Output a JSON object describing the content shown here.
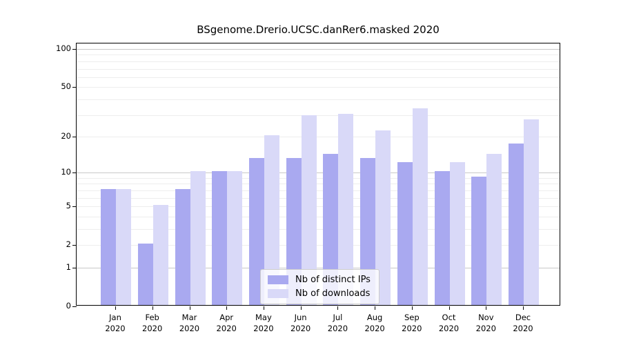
{
  "title": "BSgenome.Drerio.UCSC.danRer6.masked 2020",
  "chart_data": {
    "type": "bar",
    "title": "BSgenome.Drerio.UCSC.danRer6.masked 2020",
    "categories": [
      "Jan 2020",
      "Feb 2020",
      "Mar 2020",
      "Apr 2020",
      "May 2020",
      "Jun 2020",
      "Jul 2020",
      "Aug 2020",
      "Sep 2020",
      "Oct 2020",
      "Nov 2020",
      "Dec 2020"
    ],
    "series": [
      {
        "name": "Nb of distinct IPs",
        "color": "#a9a9f0",
        "values": [
          7,
          2,
          7,
          10,
          13,
          13,
          14,
          13,
          12,
          10,
          9,
          17
        ]
      },
      {
        "name": "Nb of downloads",
        "color": "#d9d9f8",
        "values": [
          7,
          5,
          10,
          10,
          20,
          29,
          30,
          22,
          33,
          12,
          14,
          27
        ]
      }
    ],
    "xlabel": "",
    "ylabel": "",
    "y_scale": "log10(1+v)",
    "ylim": [
      0,
      110
    ],
    "y_ticks": [
      0,
      1,
      2,
      5,
      10,
      20,
      50,
      100
    ],
    "y_gridlines_major": [
      1,
      10,
      100
    ],
    "y_gridlines_minor": [
      2,
      3,
      4,
      5,
      6,
      7,
      8,
      9,
      20,
      30,
      40,
      50,
      60,
      70,
      80,
      90
    ],
    "grid": true,
    "legend": {
      "position": "bottom-center",
      "entries": [
        "Nb of distinct IPs",
        "Nb of downloads"
      ]
    }
  }
}
